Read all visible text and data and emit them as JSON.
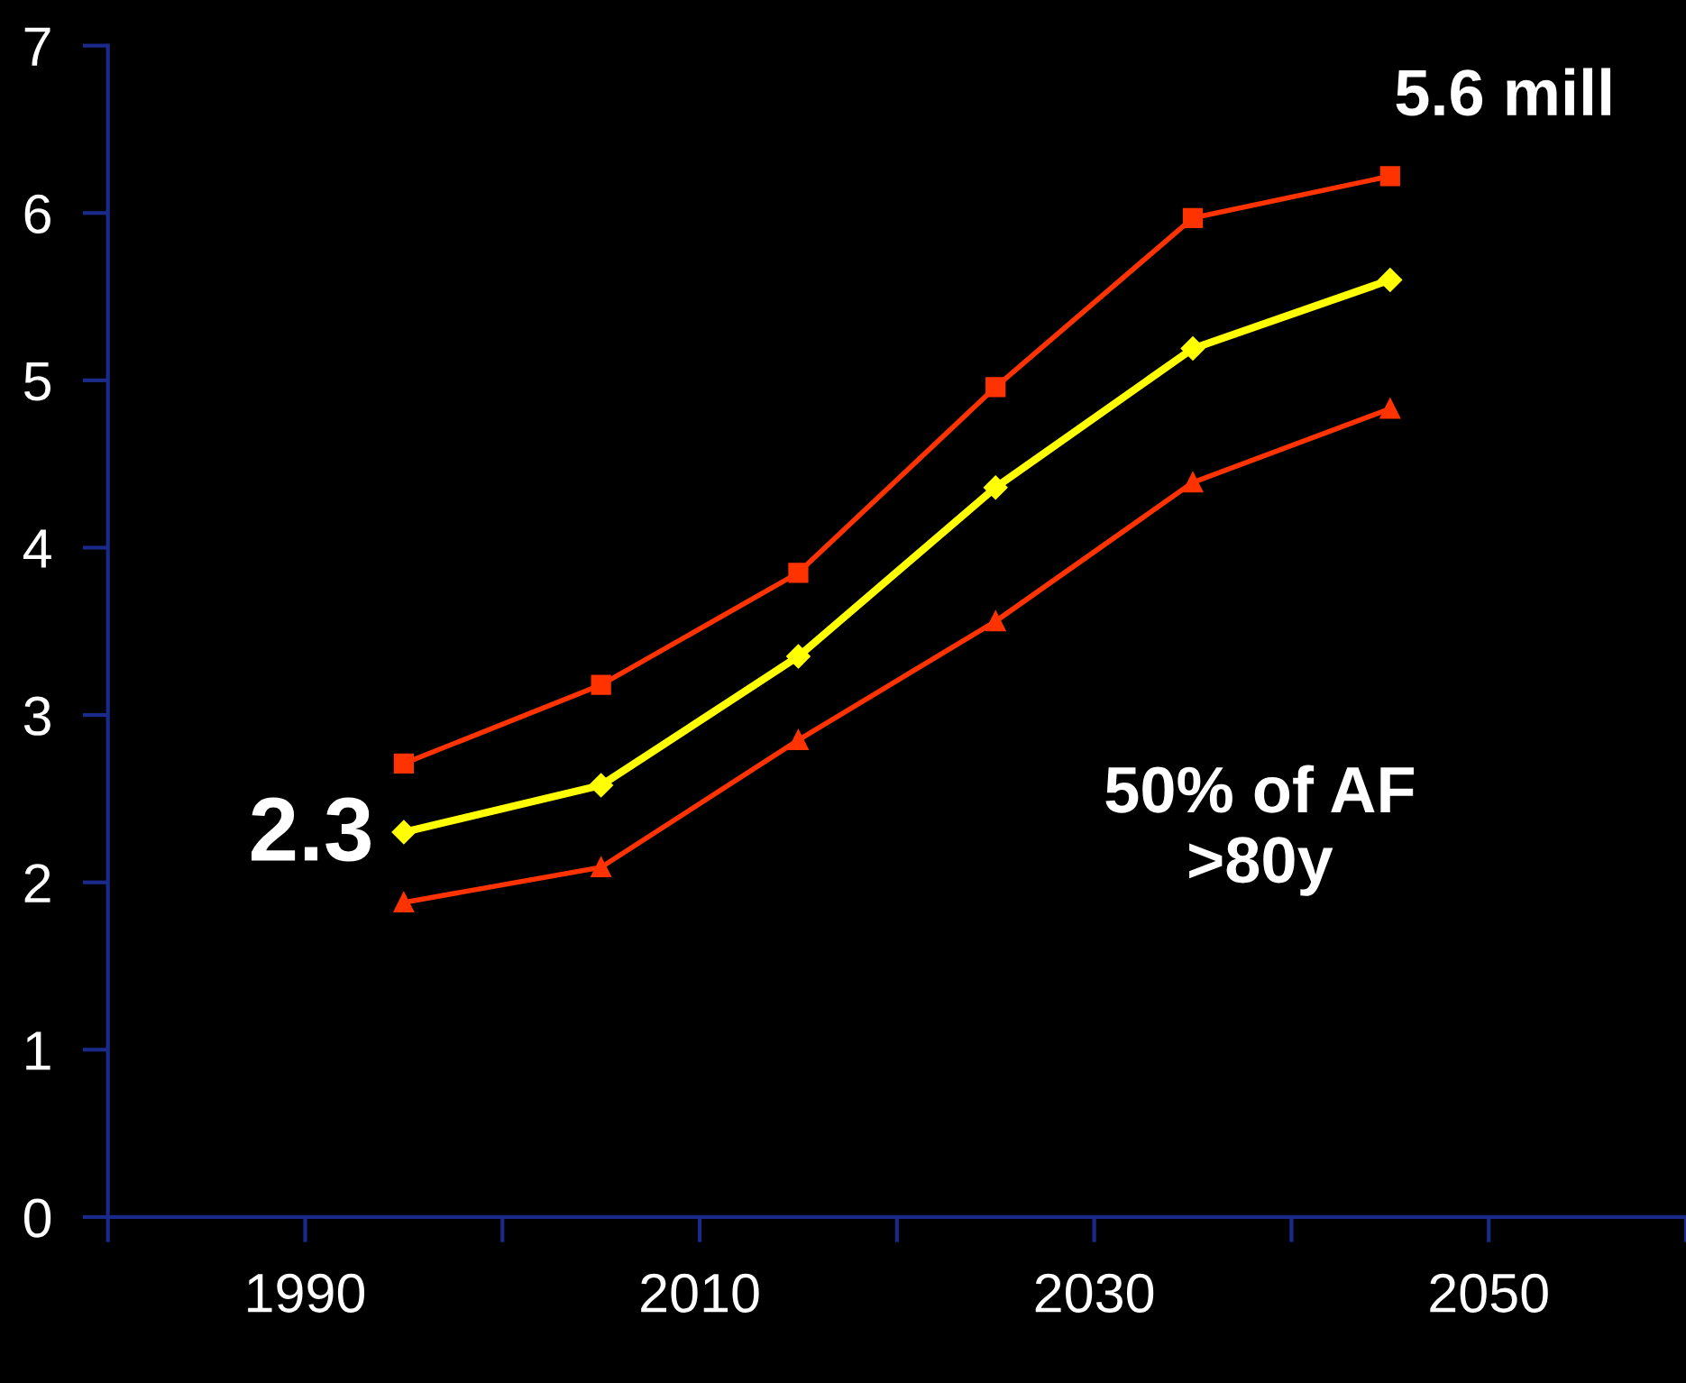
{
  "chart_data": {
    "type": "line",
    "x": [
      1995,
      2005,
      2015,
      2025,
      2035,
      2045
    ],
    "series": [
      {
        "color": "#ff3300",
        "marker": "square",
        "values": [
          2.71,
          3.18,
          3.85,
          4.96,
          5.97,
          6.22
        ]
      },
      {
        "color": "#ffff00",
        "marker": "diamond",
        "values": [
          2.3,
          2.58,
          3.35,
          4.36,
          5.19,
          5.6
        ]
      },
      {
        "color": "#ff3300",
        "marker": "triangle",
        "values": [
          1.88,
          2.09,
          2.85,
          3.56,
          4.39,
          4.83
        ]
      }
    ],
    "xlim": [
      1980,
      2060
    ],
    "xticks": [
      {
        "value": 1980,
        "label": null
      },
      1990,
      {
        "value": 2000,
        "label": null
      },
      2010,
      {
        "value": 2020,
        "label": null
      },
      2030,
      {
        "value": 2040,
        "label": null
      },
      2050,
      {
        "value": 2060,
        "label": null
      }
    ],
    "ylim": [
      0,
      7
    ],
    "yticks": [
      0,
      1,
      2,
      3,
      4,
      5,
      6,
      7
    ],
    "grid": false,
    "legend": false,
    "line_style": "solid",
    "annotations": [
      {
        "text": "2.3",
        "x": 1995,
        "y": 2.3
      },
      "5.6 mill",
      "50% of AF\n>80y"
    ]
  }
}
